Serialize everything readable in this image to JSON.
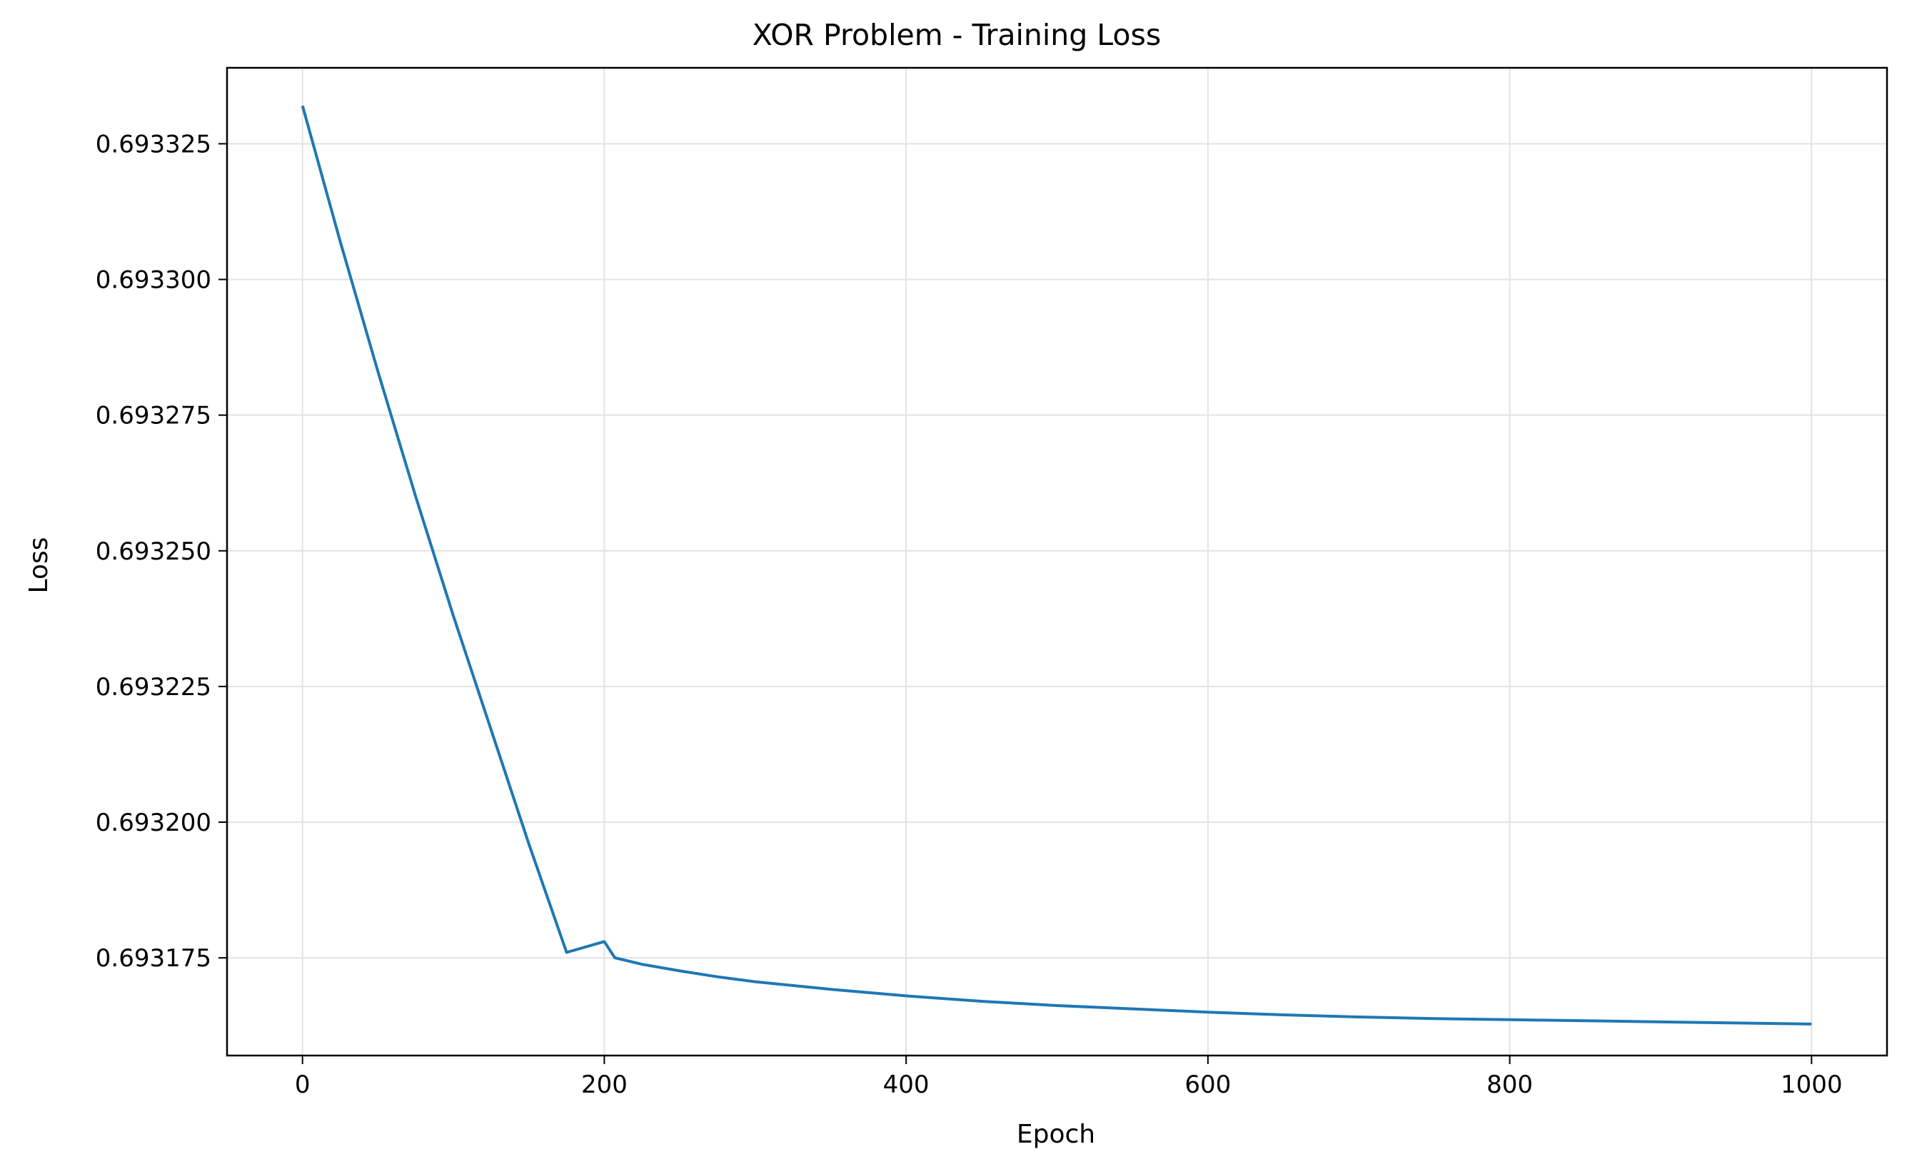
{
  "chart_data": {
    "type": "line",
    "title": "XOR Problem - Training Loss",
    "xlabel": "Epoch",
    "ylabel": "Loss",
    "xlim": [
      -50,
      1050
    ],
    "ylim": [
      0.693157,
      0.693339
    ],
    "xticks": [
      0,
      200,
      400,
      600,
      800,
      1000
    ],
    "xtick_labels": [
      "0",
      "200",
      "400",
      "600",
      "800",
      "1000"
    ],
    "yticks": [
      0.693175,
      0.6932,
      0.693225,
      0.69325,
      0.693275,
      0.6933,
      0.693325
    ],
    "ytick_labels": [
      "0.693175",
      "0.693200",
      "0.693225",
      "0.693250",
      "0.693275",
      "0.693300",
      "0.693325"
    ],
    "grid": true,
    "colors": {
      "line": "#1f77b4",
      "grid": "#e3e3e3",
      "axes": "#000000"
    },
    "series": [
      {
        "x": [
          0,
          25,
          50,
          75,
          100,
          125,
          150,
          175,
          200,
          207,
          225,
          250,
          275,
          300,
          350,
          400,
          450,
          500,
          550,
          600,
          650,
          700,
          750,
          800,
          850,
          900,
          950,
          1000
        ],
        "y": [
          0.693332,
          0.693307,
          0.693283,
          0.69326,
          0.693238,
          0.693217,
          0.693196,
          0.693176,
          0.693178,
          0.693175,
          0.6931738,
          0.6931726,
          0.6931715,
          0.6931706,
          0.6931692,
          0.693168,
          0.693167,
          0.6931662,
          0.6931656,
          0.693165,
          0.6931645,
          0.6931641,
          0.6931638,
          0.6931636,
          0.6931634,
          0.6931632,
          0.693163,
          0.6931628
        ]
      }
    ]
  }
}
